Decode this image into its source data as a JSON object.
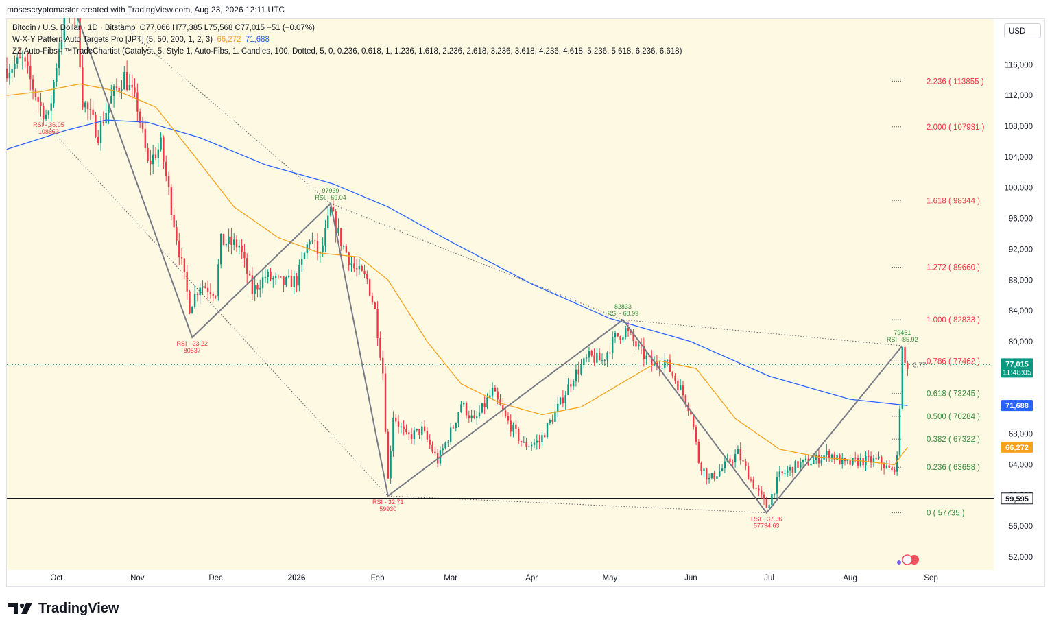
{
  "caption": "mosescryptomaster created with TradingView.com, Aug 23, 2026 12:11 UTC",
  "currency_button": "USD",
  "brand": "TradingView",
  "legend": {
    "symbol": "Bitcoin / U.S. Dollar · 1D · Bitstamp",
    "ohlc": "O77,066  H77,385  L75,568  C77,015  −51 (−0.07%)",
    "indicator1": "W-X-Y Pattern Auto Targets Pro [JPT] (5, 50, 200, 1, 2, 3)",
    "indicator1_v1": "66,272",
    "indicator1_v2": "71,688",
    "indicator2": "ZZ Auto-Fibs - ™TradeChartist (Catalyst, 5, Style 1, Auto-Fibs, 1. Candles, 100, Dotted, 5, 0, 0.236, 0.618, 1, 1.236, 1.618, 2.236, 2.618, 3.236, 3.618, 4.236, 4.618, 5.236, 5.618, 6.236, 6.618)"
  },
  "colors": {
    "plot_bg": "#fdf9e3",
    "up": "#089981",
    "down": "#f23645",
    "ma50": "#f7a21b",
    "ma200": "#2962ff",
    "zigzag": "#787b86",
    "fib_red": "#f23645",
    "fib_green": "#388e3c"
  },
  "chart_data": {
    "type": "candlestick",
    "title": "Bitcoin / U.S. Dollar · 1D · Bitstamp",
    "y_axis_labels": [
      "116,000",
      "112,000",
      "108,000",
      "104,000",
      "100,000",
      "96,000",
      "92,000",
      "88,000",
      "84,000",
      "80,000",
      "76,000",
      "72,000",
      "68,000",
      "64,000",
      "60,000",
      "56,000",
      "52,000"
    ],
    "y_ticks": [
      116000,
      112000,
      108000,
      104000,
      100000,
      96000,
      92000,
      88000,
      84000,
      80000,
      76000,
      72000,
      68000,
      64000,
      60000,
      56000,
      52000
    ],
    "ylim": [
      50300,
      122000
    ],
    "x_axis_labels": [
      "Oct",
      "Nov",
      "Dec",
      "2026",
      "Feb",
      "Mar",
      "Apr",
      "May",
      "Jun",
      "Jul",
      "Aug",
      "Sep"
    ],
    "x_ticks": [
      "2025-10-01",
      "2025-11-01",
      "2025-12-01",
      "2026-01-01",
      "2026-02-01",
      "2026-03-01",
      "2026-04-01",
      "2026-05-01",
      "2026-06-01",
      "2026-07-01",
      "2026-08-01",
      "2026-09-01"
    ],
    "xlim": [
      "2025-09-12",
      "2026-09-25"
    ],
    "price_labels": [
      {
        "value": 77015,
        "text": "77,015",
        "text2": "11:48:05",
        "color": "#089981"
      },
      {
        "value": 71688,
        "text": "71,688",
        "color": "#2962ff"
      },
      {
        "value": 66272,
        "text": "66,272",
        "color": "#f7a21b"
      },
      {
        "value": 59595,
        "text": "59,595",
        "color": "#131722",
        "outlined": true
      }
    ],
    "horizontal_line": 59595,
    "current_price": 77015,
    "fib_levels": [
      {
        "ratio": "2.236",
        "value": 113855,
        "color": "red"
      },
      {
        "ratio": "2.000",
        "value": 107931,
        "color": "red"
      },
      {
        "ratio": "1.618",
        "value": 98344,
        "color": "red"
      },
      {
        "ratio": "1.272",
        "value": 89660,
        "color": "red"
      },
      {
        "ratio": "1.000",
        "value": 82833,
        "color": "red"
      },
      {
        "ratio": "0.786",
        "value": 77462,
        "color": "red"
      },
      {
        "ratio": "0.618",
        "value": 73245,
        "color": "green"
      },
      {
        "ratio": "0.500",
        "value": 70284,
        "color": "green"
      },
      {
        "ratio": "0.382",
        "value": 67322,
        "color": "green"
      },
      {
        "ratio": "0.236",
        "value": 63658,
        "color": "green"
      },
      {
        "ratio": "0",
        "value": 57735,
        "color": "green"
      }
    ],
    "zigzag": [
      {
        "date": "2025-10-05",
        "value": 126000
      },
      {
        "date": "2025-11-22",
        "value": 80537
      },
      {
        "date": "2026-01-14",
        "value": 97939
      },
      {
        "date": "2026-02-05",
        "value": 59930
      },
      {
        "date": "2026-05-06",
        "value": 82833
      },
      {
        "date": "2026-06-30",
        "value": 57735
      },
      {
        "date": "2026-08-21",
        "value": 79461
      }
    ],
    "dotted_lines": [
      [
        {
          "date": "2025-09-25",
          "value": 109000
        },
        {
          "date": "2026-02-05",
          "value": 59930
        }
      ],
      [
        {
          "date": "2026-02-05",
          "value": 59930
        },
        {
          "date": "2026-06-30",
          "value": 57735
        }
      ],
      [
        {
          "date": "2025-10-25",
          "value": 121500
        },
        {
          "date": "2026-01-14",
          "value": 97939
        }
      ],
      [
        {
          "date": "2026-01-14",
          "value": 97939
        },
        {
          "date": "2026-05-06",
          "value": 82833
        }
      ],
      [
        {
          "date": "2026-05-06",
          "value": 82833
        },
        {
          "date": "2026-08-21",
          "value": 79461
        }
      ]
    ],
    "pivot_labels": [
      {
        "date": "2025-09-28",
        "value": 109000,
        "lines": [
          "RSI - 36.05",
          "108653"
        ],
        "color": "red",
        "pos": "below"
      },
      {
        "date": "2025-11-22",
        "value": 80537,
        "lines": [
          "RSI - 23.22",
          "80537"
        ],
        "color": "red",
        "pos": "below"
      },
      {
        "date": "2026-01-14",
        "value": 97939,
        "lines": [
          "97939",
          "RSI - 69.04"
        ],
        "color": "green",
        "pos": "above"
      },
      {
        "date": "2026-02-05",
        "value": 59930,
        "lines": [
          "RSI - 32.71",
          "59930"
        ],
        "color": "red",
        "pos": "below"
      },
      {
        "date": "2026-05-06",
        "value": 82833,
        "lines": [
          "82833",
          "RSI - 68.99"
        ],
        "color": "green",
        "pos": "above"
      },
      {
        "date": "2026-06-30",
        "value": 57735,
        "lines": [
          "RSI - 37.36",
          "57734.63"
        ],
        "color": "red",
        "pos": "below"
      },
      {
        "date": "2026-08-21",
        "value": 79461,
        "lines": [
          "79461",
          "RSI - 85.92"
        ],
        "color": "green",
        "pos": "above"
      }
    ],
    "small_price_tag": "0.77",
    "price_path": [
      {
        "date": "2025-09-12",
        "value": 115500
      },
      {
        "date": "2025-09-18",
        "value": 116500
      },
      {
        "date": "2025-09-25",
        "value": 110500
      },
      {
        "date": "2025-09-28",
        "value": 109000
      },
      {
        "date": "2025-10-02",
        "value": 118500
      },
      {
        "date": "2025-10-06",
        "value": 124000
      },
      {
        "date": "2025-10-09",
        "value": 122000
      },
      {
        "date": "2025-10-11",
        "value": 111500
      },
      {
        "date": "2025-10-17",
        "value": 107000
      },
      {
        "date": "2025-10-21",
        "value": 111000
      },
      {
        "date": "2025-10-27",
        "value": 114500
      },
      {
        "date": "2025-11-01",
        "value": 110500
      },
      {
        "date": "2025-11-05",
        "value": 103000
      },
      {
        "date": "2025-11-10",
        "value": 105500
      },
      {
        "date": "2025-11-15",
        "value": 95500
      },
      {
        "date": "2025-11-21",
        "value": 84500
      },
      {
        "date": "2025-11-25",
        "value": 87500
      },
      {
        "date": "2025-12-01",
        "value": 86500
      },
      {
        "date": "2025-12-03",
        "value": 93000
      },
      {
        "date": "2025-12-10",
        "value": 92500
      },
      {
        "date": "2025-12-15",
        "value": 86500
      },
      {
        "date": "2025-12-20",
        "value": 88500
      },
      {
        "date": "2025-12-27",
        "value": 87500
      },
      {
        "date": "2026-01-01",
        "value": 88000
      },
      {
        "date": "2026-01-06",
        "value": 93500
      },
      {
        "date": "2026-01-10",
        "value": 91000
      },
      {
        "date": "2026-01-14",
        "value": 97000
      },
      {
        "date": "2026-01-18",
        "value": 93000
      },
      {
        "date": "2026-01-23",
        "value": 89500
      },
      {
        "date": "2026-01-28",
        "value": 88000
      },
      {
        "date": "2026-01-31",
        "value": 84000
      },
      {
        "date": "2026-02-03",
        "value": 76000
      },
      {
        "date": "2026-02-05",
        "value": 62000
      },
      {
        "date": "2026-02-07",
        "value": 70500
      },
      {
        "date": "2026-02-12",
        "value": 67500
      },
      {
        "date": "2026-02-18",
        "value": 68500
      },
      {
        "date": "2026-02-24",
        "value": 64500
      },
      {
        "date": "2026-03-02",
        "value": 69000
      },
      {
        "date": "2026-03-05",
        "value": 72000
      },
      {
        "date": "2026-03-10",
        "value": 69500
      },
      {
        "date": "2026-03-17",
        "value": 73500
      },
      {
        "date": "2026-03-22",
        "value": 70000
      },
      {
        "date": "2026-03-29",
        "value": 66500
      },
      {
        "date": "2026-04-04",
        "value": 67000
      },
      {
        "date": "2026-04-12",
        "value": 72000
      },
      {
        "date": "2026-04-17",
        "value": 75500
      },
      {
        "date": "2026-04-23",
        "value": 78000
      },
      {
        "date": "2026-04-28",
        "value": 77500
      },
      {
        "date": "2026-05-03",
        "value": 80500
      },
      {
        "date": "2026-05-07",
        "value": 81500
      },
      {
        "date": "2026-05-12",
        "value": 79000
      },
      {
        "date": "2026-05-17",
        "value": 77000
      },
      {
        "date": "2026-05-22",
        "value": 77500
      },
      {
        "date": "2026-05-27",
        "value": 74500
      },
      {
        "date": "2026-06-01",
        "value": 71000
      },
      {
        "date": "2026-06-04",
        "value": 64500
      },
      {
        "date": "2026-06-08",
        "value": 62000
      },
      {
        "date": "2026-06-13",
        "value": 63500
      },
      {
        "date": "2026-06-19",
        "value": 65500
      },
      {
        "date": "2026-06-24",
        "value": 62000
      },
      {
        "date": "2026-06-30",
        "value": 58500
      },
      {
        "date": "2026-07-05",
        "value": 62500
      },
      {
        "date": "2026-07-12",
        "value": 64000
      },
      {
        "date": "2026-07-18",
        "value": 64500
      },
      {
        "date": "2026-07-24",
        "value": 65500
      },
      {
        "date": "2026-07-30",
        "value": 64000
      },
      {
        "date": "2026-08-05",
        "value": 64500
      },
      {
        "date": "2026-08-12",
        "value": 64500
      },
      {
        "date": "2026-08-17",
        "value": 63000
      },
      {
        "date": "2026-08-19",
        "value": 64500
      },
      {
        "date": "2026-08-20",
        "value": 72000
      },
      {
        "date": "2026-08-21",
        "value": 78500
      },
      {
        "date": "2026-08-22",
        "value": 77000
      },
      {
        "date": "2026-08-23",
        "value": 77015
      }
    ],
    "ma50_path": [
      {
        "date": "2025-09-12",
        "value": 112000
      },
      {
        "date": "2025-09-25",
        "value": 112500
      },
      {
        "date": "2025-10-10",
        "value": 113500
      },
      {
        "date": "2025-10-25",
        "value": 112500
      },
      {
        "date": "2025-11-08",
        "value": 110500
      },
      {
        "date": "2025-11-22",
        "value": 104500
      },
      {
        "date": "2025-12-08",
        "value": 97500
      },
      {
        "date": "2025-12-25",
        "value": 93500
      },
      {
        "date": "2026-01-10",
        "value": 91500
      },
      {
        "date": "2026-01-25",
        "value": 91000
      },
      {
        "date": "2026-02-05",
        "value": 88000
      },
      {
        "date": "2026-02-20",
        "value": 80000
      },
      {
        "date": "2026-03-05",
        "value": 74500
      },
      {
        "date": "2026-03-20",
        "value": 72000
      },
      {
        "date": "2026-04-05",
        "value": 70500
      },
      {
        "date": "2026-04-20",
        "value": 71500
      },
      {
        "date": "2026-05-05",
        "value": 74500
      },
      {
        "date": "2026-05-20",
        "value": 77500
      },
      {
        "date": "2026-06-03",
        "value": 76500
      },
      {
        "date": "2026-06-18",
        "value": 70000
      },
      {
        "date": "2026-07-05",
        "value": 66000
      },
      {
        "date": "2026-07-20",
        "value": 65000
      },
      {
        "date": "2026-08-05",
        "value": 64500
      },
      {
        "date": "2026-08-18",
        "value": 64000
      },
      {
        "date": "2026-08-23",
        "value": 66272
      }
    ],
    "ma200_path": [
      {
        "date": "2025-09-12",
        "value": 105000
      },
      {
        "date": "2025-10-05",
        "value": 107500
      },
      {
        "date": "2025-10-20",
        "value": 108800
      },
      {
        "date": "2025-11-05",
        "value": 108500
      },
      {
        "date": "2025-11-25",
        "value": 106500
      },
      {
        "date": "2025-12-20",
        "value": 103000
      },
      {
        "date": "2026-01-15",
        "value": 100500
      },
      {
        "date": "2026-02-05",
        "value": 97500
      },
      {
        "date": "2026-03-01",
        "value": 93000
      },
      {
        "date": "2026-04-01",
        "value": 87500
      },
      {
        "date": "2026-05-01",
        "value": 83000
      },
      {
        "date": "2026-06-01",
        "value": 80000
      },
      {
        "date": "2026-07-01",
        "value": 75500
      },
      {
        "date": "2026-08-01",
        "value": 72500
      },
      {
        "date": "2026-08-23",
        "value": 71688
      }
    ]
  }
}
